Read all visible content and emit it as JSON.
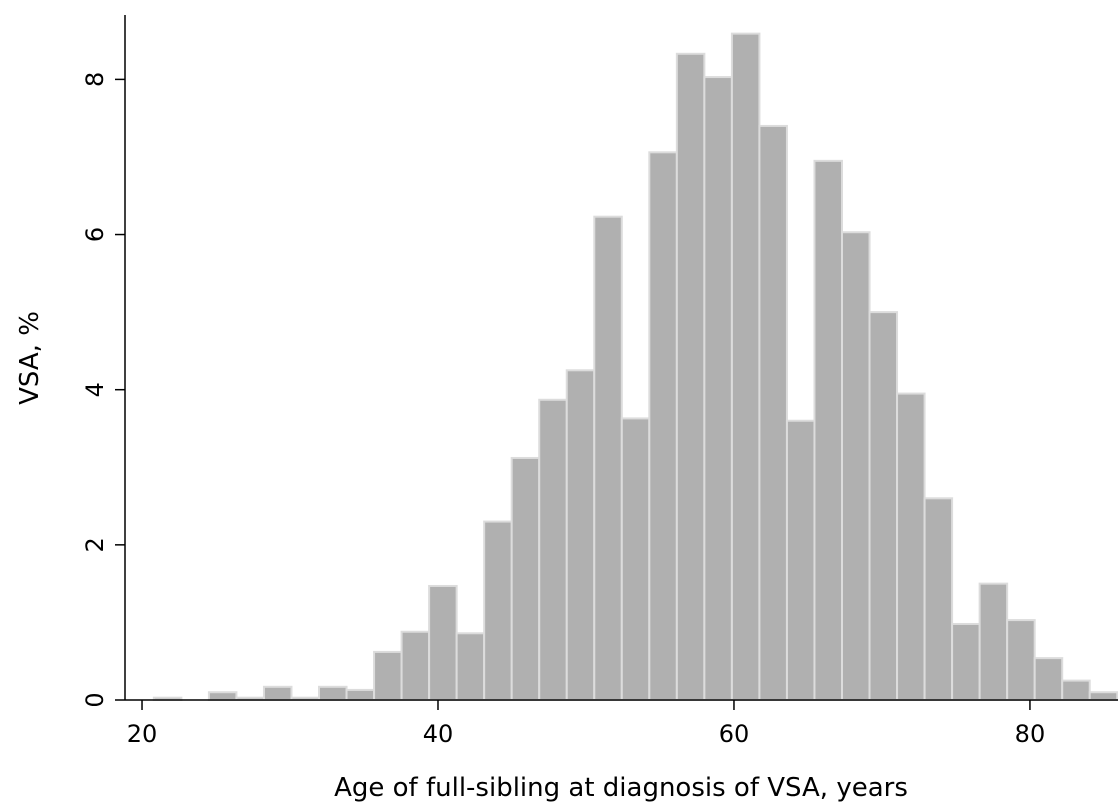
{
  "chart_data": {
    "type": "histogram",
    "xlabel": "Age of full-sibling at diagnosis of VSA, years",
    "ylabel": "VSA, %",
    "bins": [
      20.8,
      22.66,
      24.52,
      26.38,
      28.24,
      30.1,
      31.96,
      33.82,
      35.68,
      37.54,
      39.4,
      41.26,
      43.12,
      44.98,
      46.84,
      48.7,
      50.56,
      52.42,
      54.28,
      56.14,
      58.0,
      59.86,
      61.72,
      63.58,
      65.44,
      67.3,
      69.16,
      71.02,
      72.88,
      74.74,
      76.6,
      78.46,
      80.32,
      82.18,
      84.04,
      85.9
    ],
    "values": [
      0.03,
      0,
      0.1,
      0.03,
      0.17,
      0.03,
      0.17,
      0.13,
      0.62,
      0.88,
      1.47,
      0.86,
      2.3,
      3.12,
      3.87,
      4.25,
      6.23,
      3.63,
      7.06,
      8.33,
      8.03,
      8.59,
      7.4,
      3.6,
      6.95,
      6.03,
      5.0,
      3.95,
      2.6,
      0.98,
      1.5,
      1.03,
      0.54,
      0.25,
      0.1
    ],
    "color": "#b0b0b0",
    "edgecolor": "#dcdcdc",
    "xlim": [
      18.85,
      85.95
    ],
    "xticks": [
      20,
      40,
      60,
      80
    ],
    "ylim": [
      0,
      8.83
    ],
    "yticks": [
      0,
      2,
      4,
      6,
      8
    ],
    "grid": false
  }
}
